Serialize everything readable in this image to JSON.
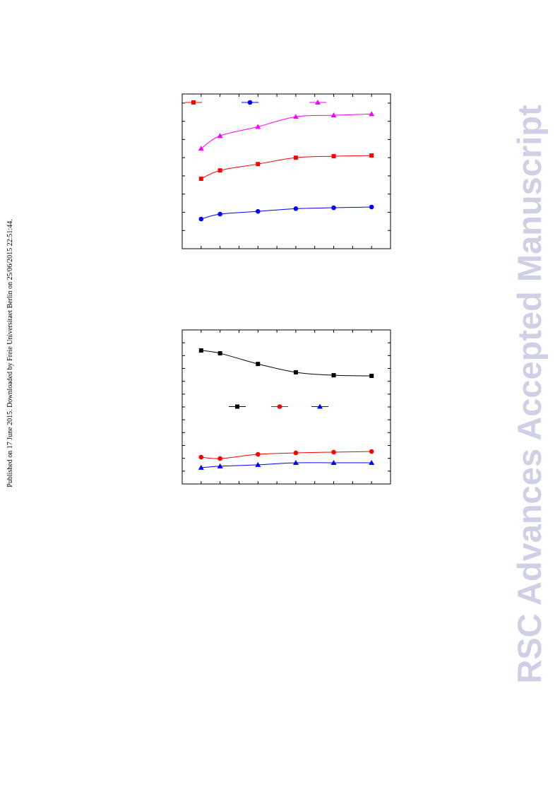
{
  "side_note": "Published on 17 June 2015. Downloaded by Freie Universitaet Berlin on 25/06/2015 22:51:44.",
  "watermark": "RSC Advances Accepted Manuscript",
  "chart_data": [
    {
      "type": "line",
      "legend": "top",
      "x": [
        1,
        2,
        4,
        6,
        8,
        10
      ],
      "xlim": [
        0,
        11
      ],
      "xticks": [
        0,
        1,
        2,
        3,
        4,
        5,
        6,
        7,
        8,
        9,
        10,
        11
      ],
      "ylim": [
        0,
        8.5
      ],
      "yticks": [
        0,
        1,
        2,
        3,
        4,
        5,
        6,
        7,
        8
      ],
      "series": [
        {
          "color": "#ff0000",
          "marker": "square",
          "values": [
            3.84,
            4.3,
            4.65,
            5.0,
            5.08,
            5.12
          ]
        },
        {
          "color": "#0000ff",
          "marker": "circle",
          "values": [
            1.63,
            1.9,
            2.05,
            2.2,
            2.25,
            2.29
          ]
        },
        {
          "color": "#ff00ff",
          "marker": "triangle",
          "values": [
            5.5,
            6.2,
            6.7,
            7.25,
            7.33,
            7.4
          ]
        }
      ]
    },
    {
      "type": "line",
      "legend": "center",
      "x": [
        1,
        2,
        4,
        6,
        8,
        10
      ],
      "xlim": [
        0,
        11
      ],
      "xticks": [
        0,
        1,
        2,
        3,
        4,
        5,
        6,
        7,
        8,
        9,
        10,
        11
      ],
      "ylim": [
        0,
        12
      ],
      "yticks": [
        0,
        1,
        2,
        3,
        4,
        5,
        6,
        7,
        8,
        9,
        10,
        11,
        12
      ],
      "series": [
        {
          "color": "#000000",
          "marker": "square",
          "values": [
            10.4,
            10.18,
            9.35,
            8.7,
            8.47,
            8.42
          ]
        },
        {
          "color": "#ff0000",
          "marker": "circle",
          "values": [
            2.09,
            1.98,
            2.31,
            2.42,
            2.48,
            2.53
          ]
        },
        {
          "color": "#0000ff",
          "marker": "triangle",
          "values": [
            1.27,
            1.38,
            1.49,
            1.65,
            1.65,
            1.65
          ]
        }
      ]
    }
  ]
}
